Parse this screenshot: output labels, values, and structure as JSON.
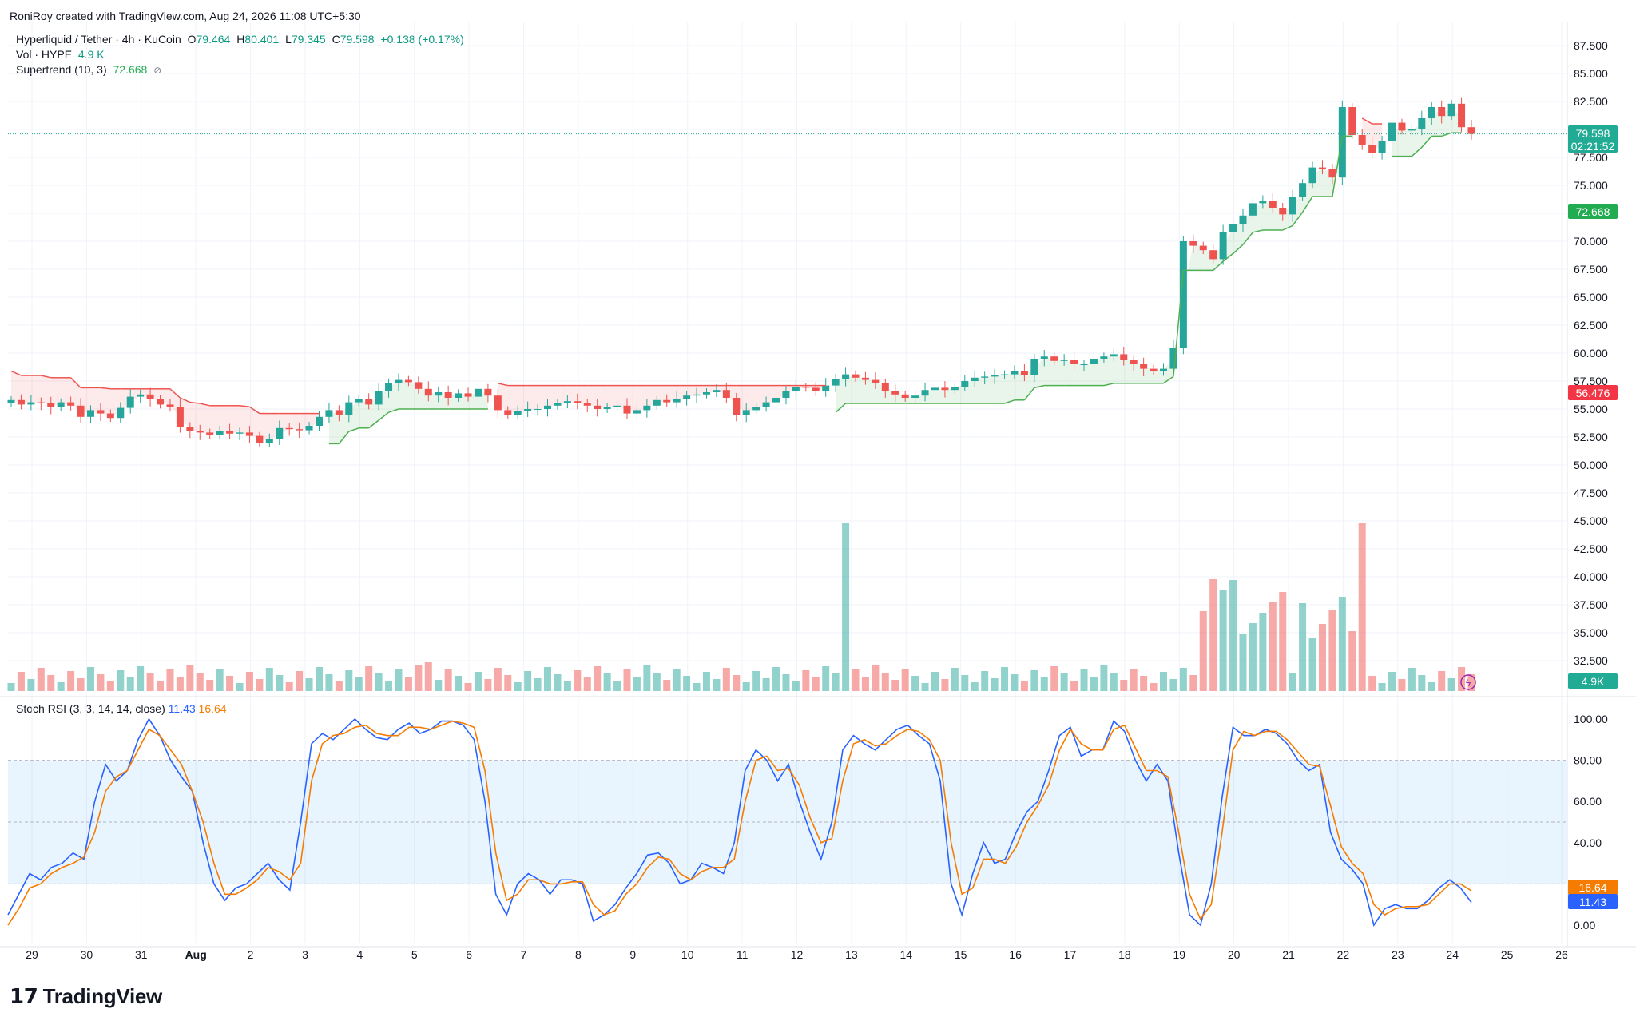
{
  "caption": "RoniRoy created with TradingView.com, Aug 24, 2026 11:08 UTC+5:30",
  "legend": {
    "symbol": "Hyperliquid / Tether · 4h · KuCoin",
    "o_label": "O",
    "o": "79.464",
    "h_label": "H",
    "h": "80.401",
    "l_label": "L",
    "l": "79.345",
    "c_label": "C",
    "c": "79.598",
    "change": "+0.138 (+0.17%)",
    "vol_label": "Vol · HYPE",
    "vol_value": "4.9 K",
    "st_label": "Supertrend (10, 3)",
    "st_value": "72.668",
    "st_icon": "eye-off-icon"
  },
  "stoch_legend": {
    "label": "Stoch RSI (3, 3, 14, 14, close)",
    "k": "11.43",
    "d": "16.64"
  },
  "logo": {
    "text": "TradingView",
    "mark": "TV-logo-icon"
  },
  "badges": {
    "price": "79.598",
    "countdown": "02:21:52",
    "supertrend_up": "72.668",
    "supertrend_down": "56.476",
    "volume": "4.9K",
    "stoch_d": "16.64",
    "stoch_k": "11.43"
  },
  "colors": {
    "up": "#26a69a",
    "down": "#ef5350",
    "st_up": "#4caf50",
    "st_down": "#ef5350",
    "k": "#2962ff",
    "d": "#f57c00"
  },
  "chart_data": [
    {
      "type": "candlestick",
      "title": "Hyperliquid / Tether · 4h · KuCoin",
      "price_axis_ticks": [
        "87.500",
        "85.000",
        "82.500",
        "80.000",
        "77.500",
        "75.000",
        "72.500",
        "70.000",
        "67.500",
        "65.000",
        "62.500",
        "60.000",
        "57.500",
        "55.000",
        "52.500",
        "50.000",
        "47.500",
        "45.000",
        "42.500",
        "40.000",
        "37.500",
        "35.000",
        "32.500"
      ],
      "date_axis_ticks": [
        "29",
        "30",
        "31",
        "Aug",
        "2",
        "3",
        "4",
        "5",
        "6",
        "7",
        "8",
        "9",
        "10",
        "11",
        "12",
        "13",
        "14",
        "15",
        "16",
        "17",
        "18",
        "19",
        "20",
        "21",
        "22",
        "23",
        "24",
        "25",
        "26"
      ],
      "ylim": [
        30,
        88.5
      ],
      "closes": [
        55.8,
        55.4,
        55.6,
        55.5,
        55.2,
        55.6,
        55.3,
        54.3,
        54.9,
        54.6,
        54.2,
        55.1,
        56.1,
        56.3,
        55.9,
        55.4,
        55.2,
        53.4,
        53.0,
        52.9,
        52.7,
        53.0,
        52.8,
        52.9,
        52.6,
        52.0,
        52.3,
        53.3,
        53.2,
        53.1,
        53.5,
        54.3,
        54.9,
        54.5,
        55.6,
        55.9,
        55.4,
        56.6,
        57.3,
        57.6,
        57.4,
        56.8,
        56.2,
        56.5,
        56.0,
        56.4,
        56.1,
        56.8,
        56.2,
        54.9,
        54.5,
        54.8,
        55.0,
        55.0,
        55.3,
        55.5,
        55.7,
        55.5,
        55.3,
        55.0,
        55.2,
        55.3,
        54.6,
        54.9,
        55.3,
        55.8,
        55.6,
        55.9,
        56.2,
        56.3,
        56.5,
        56.7,
        56.0,
        54.5,
        54.9,
        55.2,
        55.6,
        56.0,
        56.6,
        57.0,
        56.9,
        56.6,
        57.1,
        57.7,
        58.1,
        57.8,
        57.6,
        57.3,
        56.6,
        56.3,
        56.0,
        56.2,
        56.7,
        56.9,
        56.7,
        57.0,
        57.5,
        57.8,
        57.9,
        58.0,
        58.1,
        58.4,
        58.0,
        59.5,
        59.7,
        59.3,
        59.4,
        59.0,
        59.0,
        59.5,
        59.7,
        59.9,
        59.4,
        59.0,
        58.6,
        58.4,
        58.6,
        60.5,
        70.0,
        69.6,
        69.2,
        68.4,
        70.8,
        71.5,
        72.3,
        73.4,
        73.6,
        73.0,
        72.4,
        74.0,
        75.2,
        76.6,
        76.5,
        75.7,
        82.0,
        79.5,
        78.6,
        77.9,
        79.0,
        80.6,
        79.9,
        80.0,
        81.0,
        82.0,
        81.2,
        82.3,
        80.2,
        79.6
      ],
      "supertrend": "plotted as lower (green, uptrend) and upper (red, downtrend) bands with shaded fill",
      "volume_axis": "shares price scale; spikes near Aug 10 and Aug 22"
    },
    {
      "type": "line",
      "title": "Stoch RSI (3, 3, 14, 14, close)",
      "ylim": [
        -5,
        105
      ],
      "axis_ticks": [
        "100.00",
        "80.00",
        "60.00",
        "40.00",
        "20.00",
        "0.00"
      ],
      "bands": {
        "upper": 80,
        "middle": 50,
        "lower": 20
      },
      "series": [
        {
          "name": "K",
          "values": [
            5,
            15,
            25,
            22,
            28,
            30,
            35,
            32,
            60,
            78,
            70,
            75,
            90,
            100,
            92,
            80,
            72,
            65,
            40,
            20,
            12,
            18,
            20,
            25,
            30,
            22,
            17,
            50,
            88,
            93,
            90,
            95,
            100,
            95,
            91,
            90,
            95,
            98,
            93,
            95,
            99,
            99,
            97,
            90,
            60,
            15,
            5,
            20,
            25,
            22,
            15,
            22,
            22,
            20,
            2,
            5,
            10,
            18,
            25,
            34,
            35,
            30,
            20,
            22,
            30,
            28,
            25,
            40,
            75,
            85,
            80,
            70,
            78,
            60,
            45,
            32,
            50,
            85,
            92,
            88,
            85,
            90,
            95,
            97,
            92,
            88,
            70,
            20,
            5,
            25,
            40,
            30,
            32,
            45,
            55,
            60,
            75,
            92,
            96,
            82,
            85,
            85,
            99,
            94,
            80,
            70,
            78,
            70,
            35,
            5,
            0,
            20,
            62,
            96,
            92,
            92,
            95,
            93,
            88,
            80,
            75,
            78,
            45,
            32,
            27,
            20,
            0,
            8,
            10,
            8,
            8,
            12,
            18,
            22,
            18,
            11
          ]
        },
        {
          "name": "D",
          "values": [
            0,
            8,
            18,
            20,
            25,
            28,
            30,
            33,
            45,
            65,
            72,
            75,
            85,
            95,
            92,
            85,
            78,
            65,
            50,
            30,
            15,
            15,
            18,
            22,
            28,
            26,
            22,
            30,
            70,
            88,
            92,
            93,
            96,
            97,
            93,
            92,
            92,
            96,
            96,
            95,
            97,
            99,
            98,
            96,
            75,
            35,
            12,
            15,
            22,
            22,
            20,
            20,
            21,
            21,
            10,
            5,
            7,
            15,
            20,
            28,
            33,
            32,
            25,
            22,
            26,
            28,
            28,
            32,
            60,
            80,
            82,
            75,
            76,
            68,
            52,
            40,
            42,
            70,
            88,
            90,
            87,
            88,
            92,
            95,
            94,
            90,
            80,
            40,
            15,
            18,
            32,
            32,
            30,
            38,
            50,
            58,
            68,
            85,
            95,
            88,
            85,
            85,
            95,
            97,
            86,
            75,
            75,
            72,
            45,
            15,
            3,
            10,
            45,
            85,
            94,
            92,
            94,
            94,
            90,
            84,
            78,
            77,
            58,
            38,
            30,
            25,
            10,
            5,
            8,
            9,
            9,
            10,
            15,
            20,
            20,
            16.64
          ]
        }
      ]
    }
  ]
}
